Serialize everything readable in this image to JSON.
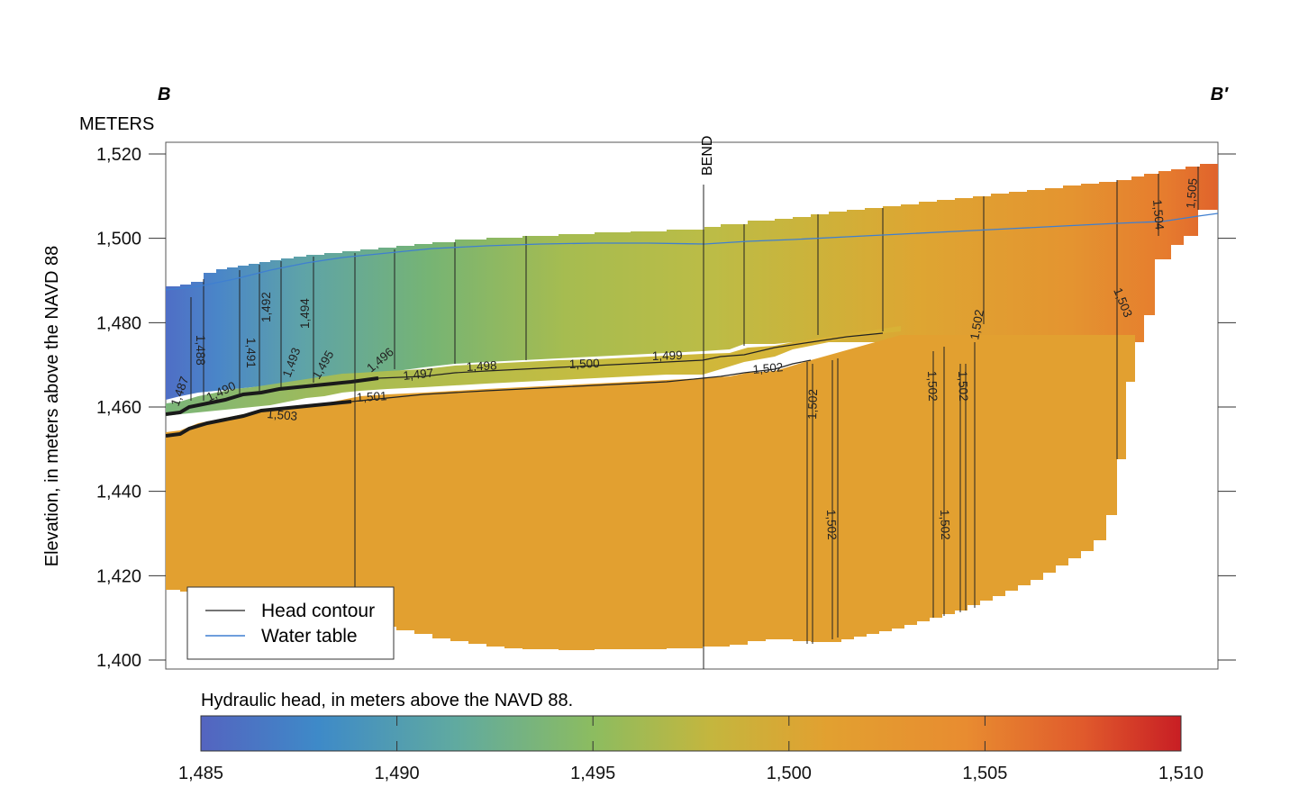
{
  "chart_data": {
    "type": "heatmap",
    "section_labels": {
      "left": "B",
      "right": "B′"
    },
    "y_unit_label": "METERS",
    "ylabel": "Elevation, in meters above the NAVD 88",
    "ylim": [
      1398,
      1522
    ],
    "y_ticks": [
      {
        "value": 1400,
        "label": "1,400"
      },
      {
        "value": 1420,
        "label": "1,420"
      },
      {
        "value": 1440,
        "label": "1,440"
      },
      {
        "value": 1460,
        "label": "1,460"
      },
      {
        "value": 1480,
        "label": "1,480"
      },
      {
        "value": 1500,
        "label": "1,500"
      },
      {
        "value": 1520,
        "label": "1,520"
      }
    ],
    "bend_label": "BEND",
    "legend": {
      "placement": "bottom-left",
      "items": [
        {
          "label": "Head contour",
          "color": "#222222"
        },
        {
          "label": "Water table",
          "color": "#3f7fd0"
        }
      ]
    },
    "colorbar": {
      "title": "Hydraulic head, in meters above the NAVD 88.",
      "range": [
        1485,
        1510
      ],
      "ticks": [
        {
          "value": 1485,
          "label": "1,485"
        },
        {
          "value": 1490,
          "label": "1,490"
        },
        {
          "value": 1495,
          "label": "1,495"
        },
        {
          "value": 1500,
          "label": "1,500"
        },
        {
          "value": 1505,
          "label": "1,505"
        },
        {
          "value": 1510,
          "label": "1,510"
        }
      ],
      "colors": [
        "#5464c0",
        "#3e8ac8",
        "#60aaa0",
        "#8cbc60",
        "#c4b63e",
        "#e2a030",
        "#e88c30",
        "#e05a2c",
        "#c81e24"
      ]
    },
    "head_contour_labels": [
      "1,487",
      "1,488",
      "1,490",
      "1,491",
      "1,492",
      "1,493",
      "1,494",
      "1,495",
      "1,496",
      "1,497",
      "1,498",
      "1,499",
      "1,500",
      "1,501",
      "1,502",
      "1,503",
      "1,504",
      "1,505"
    ],
    "colors": {
      "water_table": "#3f7fd0",
      "contour": "#222222",
      "aquifer_base_head": "#e2a030"
    }
  }
}
